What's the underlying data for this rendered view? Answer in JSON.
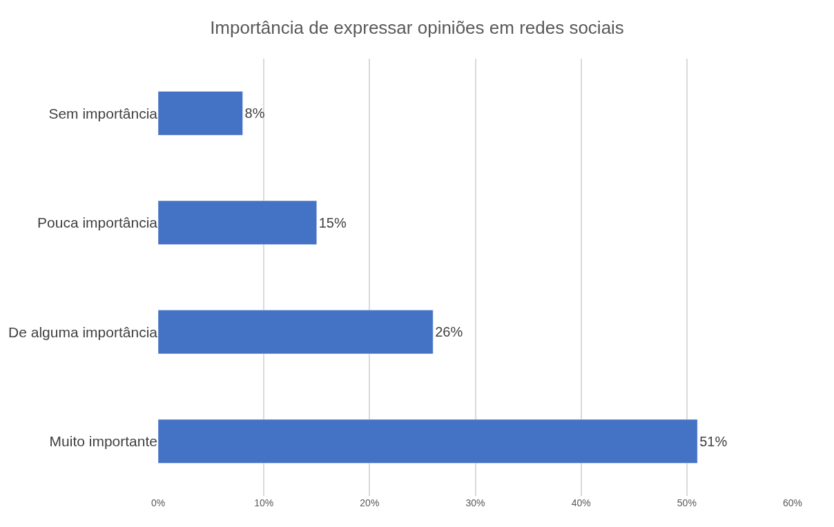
{
  "chart_data": {
    "type": "bar",
    "orientation": "horizontal",
    "title": "Importância de expressar opiniões em redes sociais",
    "categories": [
      "Sem importância",
      "Pouca importância",
      "De alguma importância",
      "Muito importante"
    ],
    "values": [
      8,
      15,
      26,
      51
    ],
    "value_labels": [
      "8%",
      "15%",
      "26%",
      "51%"
    ],
    "color": "#4472c4",
    "xlim": [
      0,
      60
    ],
    "xticks": [
      {
        "value": 0,
        "label": "0%"
      },
      {
        "value": 10,
        "label": "10%"
      },
      {
        "value": 20,
        "label": "20%"
      },
      {
        "value": 30,
        "label": "30%"
      },
      {
        "value": 40,
        "label": "40%"
      },
      {
        "value": 50,
        "label": "50%"
      },
      {
        "value": 60,
        "label": "60%"
      }
    ],
    "grid": "x"
  }
}
